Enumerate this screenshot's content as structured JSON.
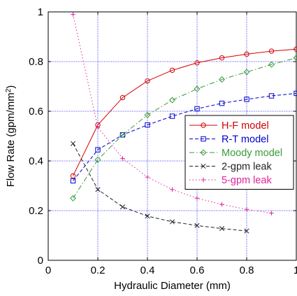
{
  "chart_data": {
    "type": "line",
    "xlabel": "Hydraulic Diameter (mm)",
    "ylabel_main": "Flow Rate (gpm/mm",
    "ylabel_sup": "2",
    "ylabel_close": ")",
    "xlim": [
      0,
      1
    ],
    "ylim": [
      0,
      1
    ],
    "x_ticks": [
      0,
      0.2,
      0.4,
      0.6,
      0.8,
      1
    ],
    "x_tick_labels": [
      "0",
      "0.2",
      "0.4",
      "0.6",
      "0.8",
      "1"
    ],
    "y_ticks": [
      0,
      0.2,
      0.4,
      0.6,
      0.8,
      1
    ],
    "y_tick_labels": [
      "0",
      "0.2",
      "0.4",
      "0.6",
      "0.8",
      "1"
    ],
    "grid": true,
    "grid_color": "#0000ff",
    "legend_position": "center-right",
    "series": [
      {
        "name": "H-F model",
        "color": "#d40000",
        "line": "solid",
        "marker": "circle",
        "x": [
          0.1,
          0.2,
          0.3,
          0.4,
          0.5,
          0.6,
          0.7,
          0.8,
          0.9,
          1.0
        ],
        "y": [
          0.34,
          0.545,
          0.655,
          0.722,
          0.765,
          0.795,
          0.815,
          0.83,
          0.842,
          0.85
        ]
      },
      {
        "name": "R-T model",
        "color": "#0000cc",
        "line": "dashed",
        "marker": "square",
        "x": [
          0.1,
          0.2,
          0.3,
          0.4,
          0.5,
          0.6,
          0.7,
          0.8,
          0.9,
          1.0
        ],
        "y": [
          0.32,
          0.445,
          0.505,
          0.545,
          0.58,
          0.61,
          0.632,
          0.648,
          0.662,
          0.672
        ]
      },
      {
        "name": "Moody model",
        "color": "#3a9a3a",
        "line": "dashdot",
        "marker": "diamond",
        "x": [
          0.1,
          0.2,
          0.3,
          0.4,
          0.5,
          0.6,
          0.7,
          0.8,
          0.9,
          1.0
        ],
        "y": [
          0.25,
          0.405,
          0.505,
          0.585,
          0.645,
          0.69,
          0.728,
          0.758,
          0.788,
          0.815
        ]
      },
      {
        "name": "2-gpm leak",
        "color": "#222222",
        "line": "dashed",
        "marker": "x",
        "x": [
          0.1,
          0.2,
          0.3,
          0.4,
          0.5,
          0.6,
          0.7,
          0.8
        ],
        "y": [
          0.47,
          0.285,
          0.215,
          0.178,
          0.155,
          0.14,
          0.128,
          0.118
        ]
      },
      {
        "name": "5-gpm leak",
        "color": "#e0259a",
        "line": "dotted",
        "marker": "plus",
        "x": [
          0.1,
          0.2,
          0.3,
          0.4,
          0.5,
          0.6,
          0.7,
          0.8,
          0.9
        ],
        "y": [
          0.99,
          0.535,
          0.41,
          0.335,
          0.285,
          0.25,
          0.225,
          0.205,
          0.19
        ]
      }
    ]
  }
}
